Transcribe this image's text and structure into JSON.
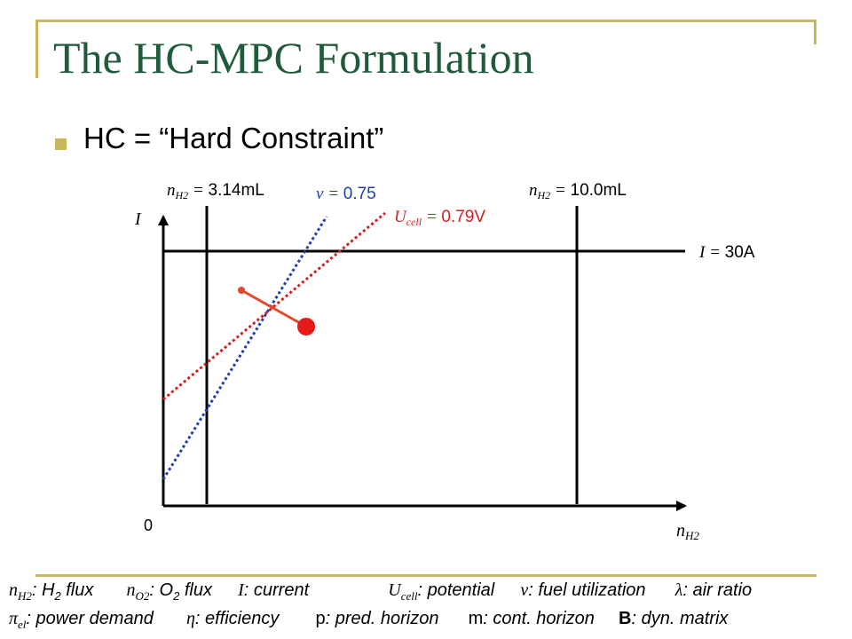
{
  "title": "The HC-MPC Formulation",
  "bullet": "HC = “Hard Constraint”",
  "diagram": {
    "origin_label": "0",
    "y_axis_symbol": "I",
    "x_axis_symbol": "n",
    "x_axis_subscript": "H2",
    "left_bound": {
      "symbol": "n",
      "subscript": "H2",
      "eq": " = ",
      "value": "3.14mL"
    },
    "right_bound": {
      "symbol": "n",
      "subscript": "H2",
      "eq": " = ",
      "value": "10.0mL"
    },
    "current_bound": {
      "symbol": "I",
      "eq": " = ",
      "value": "30A"
    },
    "nu_line": {
      "symbol": "ν",
      "eq": " = ",
      "value": "0.75",
      "color": "#1e3fb0"
    },
    "ucell_line": {
      "symbol": "U",
      "subscript": "cell",
      "eq": " = ",
      "value": "0.79V",
      "color": "#d42020"
    },
    "trajectory_color": "#e8452a",
    "end_point_color": "#e51a1a"
  },
  "legend": {
    "row1": [
      {
        "sym": "n",
        "sub": "H2",
        "text": ": H",
        "sub2": "2",
        "text2": " flux"
      },
      {
        "sym": "n",
        "sub": "O2",
        "text": ": O",
        "sub2": "2",
        "text2": " flux"
      },
      {
        "sym": "I",
        "text": ": current"
      },
      {
        "sym": "U",
        "sub": "cell",
        "text": ": potential"
      },
      {
        "sym": "ν",
        "text": ": fuel utilization"
      },
      {
        "sym": "λ",
        "text": ": air ratio"
      }
    ],
    "row2": [
      {
        "sym": "π",
        "sub": "el",
        "text": ": power demand"
      },
      {
        "sym": "η",
        "text": ": efficiency"
      },
      {
        "sym": "p",
        "text": ": pred. horizon"
      },
      {
        "sym": "m",
        "text": ": cont. horizon"
      },
      {
        "sym": "B",
        "text": ": dyn. matrix"
      }
    ]
  }
}
